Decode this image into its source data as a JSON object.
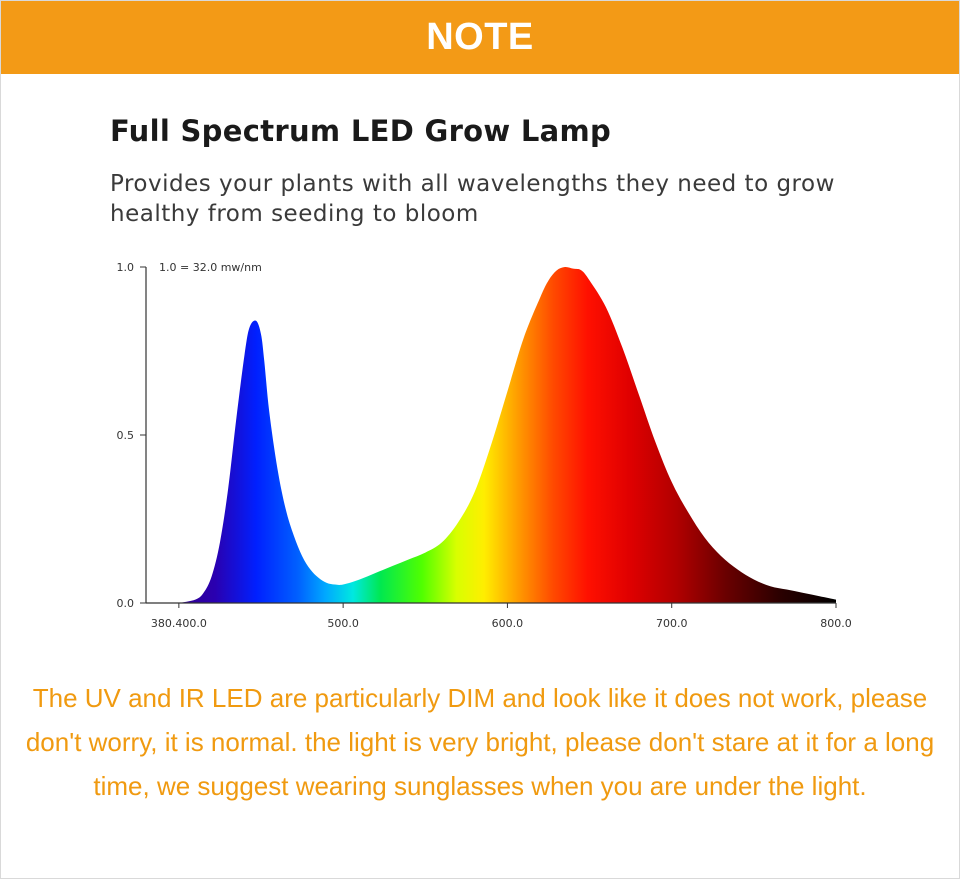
{
  "banner": {
    "label": "NOTE"
  },
  "note_text": "The UV and IR LED are particularly DIM and look like it does not work, please don't worry, it is normal. the light is very bright, please don't stare at it for a long time, we suggest wearing sunglasses when you are under the light.",
  "colors": {
    "banner": "#f39a16",
    "note_text": "#f09a10"
  },
  "chart_data": {
    "type": "area",
    "title": "Full Spectrum LED Grow Lamp",
    "subtitle": "Provides your plants with all wavelengths they need to grow healthy from seeding to bloom",
    "scale_note": "1.0 = 32.0 mw/nm",
    "xlabel": "",
    "ylabel": "",
    "xlim": [
      380,
      800
    ],
    "ylim": [
      0,
      1.0
    ],
    "x_tick_labels": [
      "380.400.0",
      "500.0",
      "600.0",
      "700.0",
      "800.0"
    ],
    "x_ticks": [
      400,
      500,
      600,
      700,
      800
    ],
    "y_tick_labels": [
      "0.0",
      "0.5",
      "1.0"
    ],
    "y_ticks": [
      0,
      0.5,
      1.0
    ],
    "fill": "wavelength spectrum colors",
    "grid": false,
    "legend": "none",
    "series": [
      {
        "x": [
          400,
          410,
          415,
          420,
          425,
          430,
          435,
          440,
          443,
          447,
          450,
          452,
          455,
          460,
          465,
          470,
          475,
          480,
          485,
          490,
          495,
          500,
          510,
          520,
          530,
          540,
          550,
          560,
          570,
          580,
          590,
          600,
          610,
          620,
          625,
          630,
          635,
          640,
          645,
          650,
          660,
          670,
          680,
          690,
          700,
          710,
          720,
          730,
          740,
          750,
          760,
          770,
          780,
          790,
          800
        ],
        "values": [
          0.0,
          0.01,
          0.03,
          0.08,
          0.18,
          0.34,
          0.55,
          0.74,
          0.82,
          0.84,
          0.8,
          0.72,
          0.57,
          0.4,
          0.28,
          0.2,
          0.14,
          0.1,
          0.075,
          0.06,
          0.055,
          0.055,
          0.07,
          0.09,
          0.11,
          0.13,
          0.15,
          0.18,
          0.24,
          0.33,
          0.47,
          0.63,
          0.79,
          0.91,
          0.96,
          0.99,
          1.0,
          0.995,
          0.99,
          0.96,
          0.88,
          0.76,
          0.62,
          0.48,
          0.36,
          0.27,
          0.195,
          0.14,
          0.1,
          0.07,
          0.05,
          0.04,
          0.03,
          0.02,
          0.01
        ]
      }
    ]
  }
}
